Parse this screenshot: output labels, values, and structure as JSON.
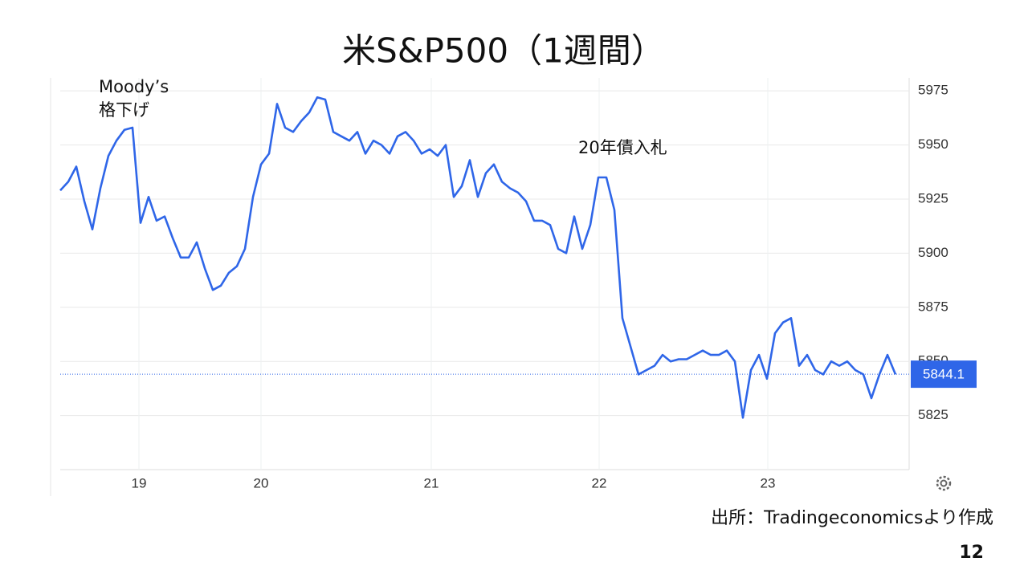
{
  "title": "米S&P500（1週間）",
  "source": "出所：Tradingeconomicsより作成",
  "page_number": "12",
  "chart_data": {
    "type": "line",
    "annotations": [
      "Moody’s",
      "格下げ",
      "20年債入札"
    ],
    "x": [
      0,
      1,
      2,
      3,
      4,
      5,
      6,
      7,
      8,
      9,
      10,
      11,
      12,
      13,
      14,
      15,
      16,
      17,
      18,
      19,
      20,
      21,
      22,
      23,
      24,
      25,
      26,
      27,
      28,
      29,
      30,
      31,
      32,
      33,
      34,
      35,
      36,
      37,
      38,
      39,
      40,
      41,
      42,
      43,
      44,
      45,
      46,
      47,
      48,
      49,
      50,
      51,
      52,
      53,
      54,
      55,
      56,
      57,
      58,
      59,
      60,
      61,
      62,
      63,
      64,
      65,
      66,
      67,
      68,
      69,
      70,
      71,
      72,
      73,
      74,
      75,
      76,
      77,
      78,
      79,
      80,
      81,
      82,
      83,
      84,
      85,
      86,
      87,
      88,
      89,
      90,
      91,
      92,
      93,
      94,
      95,
      96,
      97,
      98,
      99,
      100,
      101,
      102,
      103,
      104
    ],
    "series": [
      {
        "name": "S&P500",
        "color": "#2f66e8",
        "values": [
          5929,
          5933,
          5940,
          5924,
          5911,
          5930,
          5945,
          5952,
          5957,
          5958,
          5914,
          5926,
          5915,
          5917,
          5907,
          5898,
          5898,
          5905,
          5893,
          5883,
          5885,
          5891,
          5894,
          5902,
          5926,
          5941,
          5946,
          5969,
          5958,
          5956,
          5961,
          5965,
          5972,
          5971,
          5956,
          5954,
          5952,
          5956,
          5946,
          5952,
          5950,
          5946,
          5954,
          5956,
          5952,
          5946,
          5948,
          5945,
          5950,
          5926,
          5931,
          5943,
          5926,
          5937,
          5941,
          5933,
          5930,
          5928,
          5924,
          5915,
          5915,
          5913,
          5902,
          5900,
          5917,
          5902,
          5913,
          5935,
          5935,
          5920,
          5870,
          5857,
          5844,
          5846,
          5848,
          5853,
          5850,
          5851,
          5851,
          5853,
          5855,
          5853,
          5853,
          5855,
          5850,
          5824,
          5846,
          5853,
          5842,
          5863,
          5868,
          5870,
          5848,
          5853,
          5846,
          5844,
          5850,
          5848,
          5850,
          5846,
          5844,
          5833,
          5844,
          5853,
          5844
        ]
      }
    ],
    "current_value": 5844.1,
    "xlim": [
      0,
      105.7
    ],
    "xticks": [
      {
        "value": 9.8,
        "label": "19"
      },
      {
        "value": 25,
        "label": "20"
      },
      {
        "value": 46.2,
        "label": "21"
      },
      {
        "value": 67.1,
        "label": "22"
      },
      {
        "value": 88.1,
        "label": "23"
      }
    ],
    "ylim": [
      5800,
      5981
    ],
    "yticks": [
      5825,
      5850,
      5875,
      5900,
      5925,
      5950,
      5975
    ],
    "grid": true
  }
}
